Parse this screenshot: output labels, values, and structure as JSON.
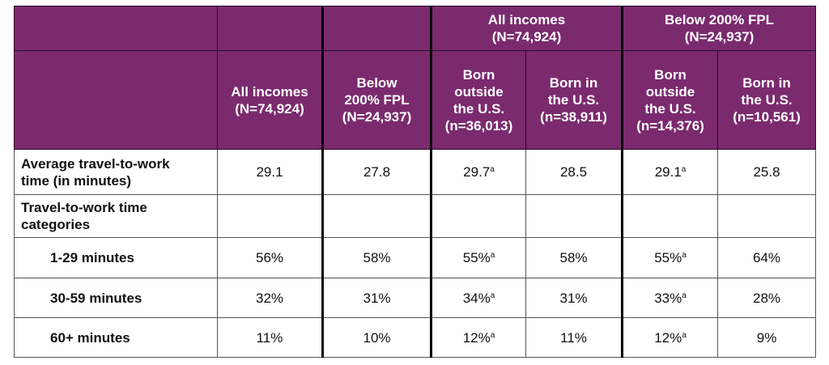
{
  "table": {
    "group_headers": [
      {
        "lines": [],
        "span": 1
      },
      {
        "lines": [],
        "span": 1
      },
      {
        "lines": [],
        "span": 1
      },
      {
        "lines": [
          "All incomes",
          "(N=74,924)"
        ],
        "span": 2
      },
      {
        "lines": [
          "Below 200% FPL",
          "(N=24,937)"
        ],
        "span": 2
      }
    ],
    "column_headers": [
      [],
      [
        "All incomes",
        "(N=74,924)"
      ],
      [
        "Below",
        "200% FPL",
        "(N=24,937)"
      ],
      [
        "Born",
        "outside",
        "the U.S.",
        "(n=36,013)"
      ],
      [
        "Born in",
        "the U.S.",
        "(n=38,911)"
      ],
      [
        "Born",
        "outside",
        "the U.S.",
        "(n=14,376)"
      ],
      [
        "Born in",
        "the U.S.",
        "(n=10,561)"
      ]
    ],
    "rows": [
      {
        "label": [
          "Average travel-to-work",
          "time (in minutes)"
        ],
        "indent": false,
        "cells": [
          {
            "text": "29.1"
          },
          {
            "text": "27.8"
          },
          {
            "text": "29.7",
            "sup": "a"
          },
          {
            "text": "28.5"
          },
          {
            "text": "29.1",
            "sup": "a"
          },
          {
            "text": "25.8"
          }
        ]
      },
      {
        "label": [
          "Travel-to-work time",
          "categories"
        ],
        "indent": false,
        "cells": [
          {},
          {},
          {},
          {},
          {},
          {}
        ]
      },
      {
        "label": [
          "1-29 minutes"
        ],
        "indent": true,
        "cells": [
          {
            "text": "56%"
          },
          {
            "text": "58%"
          },
          {
            "text": "55%",
            "sup": "a"
          },
          {
            "text": "58%"
          },
          {
            "text": "55%",
            "sup": "a"
          },
          {
            "text": "64%"
          }
        ]
      },
      {
        "label": [
          "30-59 minutes"
        ],
        "indent": true,
        "cells": [
          {
            "text": "32%"
          },
          {
            "text": "31%"
          },
          {
            "text": "34%",
            "sup": "a"
          },
          {
            "text": "31%"
          },
          {
            "text": "33%",
            "sup": "a"
          },
          {
            "text": "28%"
          }
        ]
      },
      {
        "label": [
          "60+ minutes"
        ],
        "indent": true,
        "cells": [
          {
            "text": "11%"
          },
          {
            "text": "10%"
          },
          {
            "text": "12%",
            "sup": "a"
          },
          {
            "text": "11%"
          },
          {
            "text": "12%",
            "sup": "a"
          },
          {
            "text": "9%"
          }
        ]
      }
    ]
  }
}
